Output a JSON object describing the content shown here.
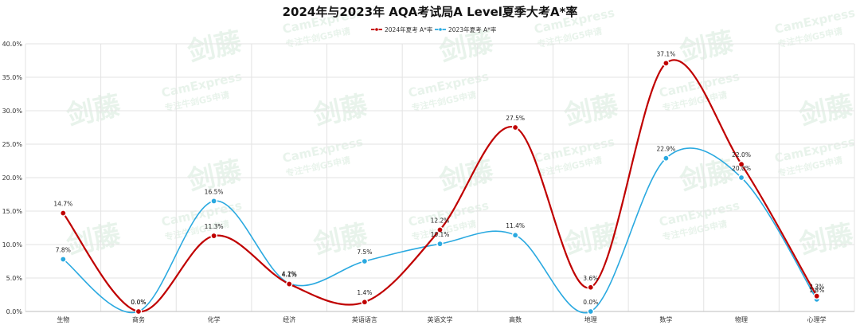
{
  "colors": {
    "s2024": "#c00000",
    "s2023": "#2aa9e0",
    "grid": "#e3e3e3",
    "watermark": "#e6f2e9"
  },
  "watermark": {
    "logo": "剑藤",
    "brand": "CamExpress",
    "slogan": "专注牛剑G5申请"
  },
  "chart_data": {
    "type": "line",
    "smooth": true,
    "title": "2024年与2023年 AQA考试局A Level夏季大考A*率",
    "legend_position": "top-center",
    "grid": true,
    "ylim": [
      0,
      40
    ],
    "yticks": [
      "0.0%",
      "5.0%",
      "10.0%",
      "15.0%",
      "20.0%",
      "25.0%",
      "30.0%",
      "35.0%",
      "40.0%"
    ],
    "categories": [
      "生物",
      "商务",
      "化学",
      "经济",
      "英语语言",
      "英语文学",
      "高数",
      "地理",
      "数学",
      "物理",
      "心理学"
    ],
    "series": [
      {
        "name": "2024年夏考 A*率",
        "color": "#c00000",
        "values": [
          14.7,
          0.0,
          11.3,
          4.1,
          1.4,
          12.2,
          27.5,
          3.6,
          37.1,
          22.0,
          2.3
        ],
        "labels": [
          "14.7%",
          "0.0%",
          "11.3%",
          "4.1%",
          "1.4%",
          "12.2%",
          "27.5%",
          "3.6%",
          "37.1%",
          "22.0%",
          "2.3%"
        ]
      },
      {
        "name": "2023年夏考 A*率",
        "color": "#2aa9e0",
        "values": [
          7.8,
          0.0,
          16.5,
          4.2,
          7.5,
          10.1,
          11.4,
          0.0,
          22.9,
          20.0,
          1.8
        ],
        "labels": [
          "7.8%",
          "0.0%",
          "16.5%",
          "4.2%",
          "7.5%",
          "10.1%",
          "11.4%",
          "0.0%",
          "22.9%",
          "20.0%",
          "1.8%"
        ]
      }
    ]
  }
}
